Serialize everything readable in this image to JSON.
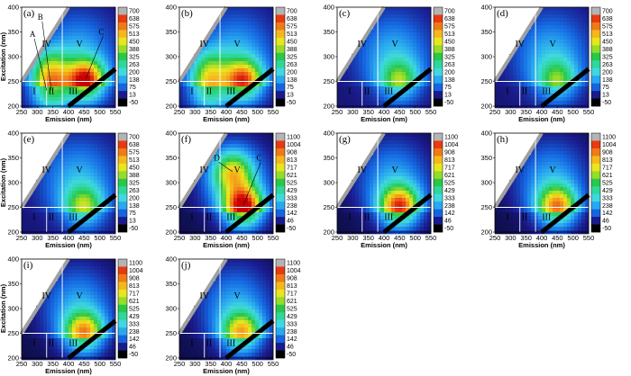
{
  "colors": {
    "colormap": [
      "#000000",
      "#1a1a8c",
      "#1565e0",
      "#29a8f0",
      "#3fd8e0",
      "#2fd79a",
      "#29c84a",
      "#96dc2a",
      "#e8e61e",
      "#f5b81c",
      "#f07a18",
      "#e83a12",
      "#c80000",
      "#b4b4b4"
    ],
    "divider": "#ffffff"
  },
  "chart_data": [
    {
      "panel": "(a)",
      "type": "heatmap",
      "xlabel": "Emission (nm)",
      "ylabel": "Excitation (nm)",
      "xlim": [
        250,
        550
      ],
      "ylim": [
        200,
        400
      ],
      "xticks": [
        250,
        300,
        350,
        400,
        450,
        500,
        550
      ],
      "yticks": [
        200,
        250,
        300,
        350,
        400
      ],
      "colorbar": [
        700,
        638,
        575,
        513,
        450,
        388,
        325,
        263,
        200,
        138,
        75,
        13,
        -50
      ],
      "regions": [
        "I",
        "II",
        "III",
        "IV",
        "V"
      ],
      "peak_labels": [
        "A",
        "B",
        "C"
      ],
      "peaks": [
        {
          "em": 345,
          "ex": 228,
          "v": 430
        },
        {
          "em": 455,
          "ex": 250,
          "v": 640
        },
        {
          "em": 340,
          "ex": 275,
          "v": 300
        }
      ]
    },
    {
      "panel": "(b)",
      "type": "heatmap",
      "xlabel": "Emission (nm)",
      "ylabel": "",
      "xlim": [
        250,
        550
      ],
      "ylim": [
        200,
        400
      ],
      "xticks": [
        250,
        300,
        350,
        400,
        450,
        500,
        550
      ],
      "yticks": [
        200,
        250,
        300,
        350,
        400
      ],
      "colorbar": [
        700,
        638,
        575,
        513,
        450,
        388,
        325,
        263,
        200,
        138,
        75,
        13,
        -50
      ],
      "regions": [
        "I",
        "II",
        "III",
        "IV",
        "V"
      ],
      "peak_labels": [],
      "peaks": [
        {
          "em": 345,
          "ex": 228,
          "v": 360
        },
        {
          "em": 455,
          "ex": 250,
          "v": 560
        },
        {
          "em": 345,
          "ex": 275,
          "v": 250
        }
      ]
    },
    {
      "panel": "(c)",
      "type": "heatmap",
      "xlabel": "Emission (nm)",
      "ylabel": "",
      "xlim": [
        250,
        550
      ],
      "ylim": [
        200,
        400
      ],
      "xticks": [
        250,
        300,
        350,
        400,
        450,
        500,
        550
      ],
      "yticks": [
        200,
        250,
        300,
        350,
        400
      ],
      "colorbar": [
        700,
        638,
        575,
        513,
        450,
        388,
        325,
        263,
        200,
        138,
        75,
        13,
        -50
      ],
      "regions": [
        "I",
        "II",
        "III",
        "IV",
        "V"
      ],
      "peak_labels": [],
      "peaks": [
        {
          "em": 450,
          "ex": 250,
          "v": 310
        }
      ]
    },
    {
      "panel": "(d)",
      "type": "heatmap",
      "xlabel": "Emission (nm)",
      "ylabel": "",
      "xlim": [
        250,
        550
      ],
      "ylim": [
        200,
        400
      ],
      "xticks": [
        250,
        300,
        350,
        400,
        450,
        500,
        550
      ],
      "yticks": [
        200,
        250,
        300,
        350,
        400
      ],
      "colorbar": [
        700,
        638,
        575,
        513,
        450,
        388,
        325,
        263,
        200,
        138,
        75,
        13,
        -50
      ],
      "regions": [
        "I",
        "II",
        "III",
        "IV",
        "V"
      ],
      "peak_labels": [],
      "peaks": [
        {
          "em": 450,
          "ex": 250,
          "v": 290
        }
      ]
    },
    {
      "panel": "(e)",
      "type": "heatmap",
      "xlabel": "Emission (nm)",
      "ylabel": "Excitation (nm)",
      "xlim": [
        250,
        550
      ],
      "ylim": [
        200,
        400
      ],
      "xticks": [
        250,
        300,
        350,
        400,
        450,
        500,
        550
      ],
      "yticks": [
        200,
        250,
        300,
        350,
        400
      ],
      "colorbar": [
        700,
        638,
        575,
        513,
        450,
        388,
        325,
        263,
        200,
        138,
        75,
        13,
        -50
      ],
      "regions": [
        "I",
        "II",
        "III",
        "IV",
        "V"
      ],
      "peak_labels": [],
      "peaks": [
        {
          "em": 450,
          "ex": 250,
          "v": 330
        }
      ]
    },
    {
      "panel": "(f)",
      "type": "heatmap",
      "xlabel": "Emission (nm)",
      "ylabel": "",
      "xlim": [
        250,
        550
      ],
      "ylim": [
        200,
        400
      ],
      "xticks": [
        250,
        300,
        350,
        400,
        450,
        500,
        550
      ],
      "yticks": [
        200,
        250,
        300,
        350,
        400
      ],
      "colorbar": [
        1100,
        1004,
        908,
        813,
        717,
        621,
        525,
        429,
        333,
        238,
        142,
        46,
        -50
      ],
      "regions": [
        "I",
        "II",
        "III",
        "IV",
        "V"
      ],
      "peak_labels": [
        "D",
        "C"
      ],
      "peaks": [
        {
          "em": 455,
          "ex": 250,
          "v": 1050
        },
        {
          "em": 420,
          "ex": 320,
          "v": 560
        }
      ]
    },
    {
      "panel": "(g)",
      "type": "heatmap",
      "xlabel": "Emission (nm)",
      "ylabel": "",
      "xlim": [
        250,
        550
      ],
      "ylim": [
        200,
        400
      ],
      "xticks": [
        250,
        300,
        350,
        400,
        450,
        500,
        550
      ],
      "yticks": [
        200,
        250,
        300,
        350,
        400
      ],
      "colorbar": [
        1100,
        1004,
        908,
        813,
        717,
        621,
        525,
        429,
        333,
        238,
        142,
        46,
        -50
      ],
      "regions": [
        "I",
        "II",
        "III",
        "IV",
        "V"
      ],
      "peak_labels": [],
      "peaks": [
        {
          "em": 450,
          "ex": 250,
          "v": 900
        }
      ]
    },
    {
      "panel": "(h)",
      "type": "heatmap",
      "xlabel": "Emission (nm)",
      "ylabel": "",
      "xlim": [
        250,
        550
      ],
      "ylim": [
        200,
        400
      ],
      "xticks": [
        250,
        300,
        350,
        400,
        450,
        500,
        550
      ],
      "yticks": [
        200,
        250,
        300,
        350,
        400
      ],
      "colorbar": [
        1100,
        1004,
        908,
        813,
        717,
        621,
        525,
        429,
        333,
        238,
        142,
        46,
        -50
      ],
      "regions": [
        "I",
        "II",
        "III",
        "IV",
        "V"
      ],
      "peak_labels": [],
      "peaks": [
        {
          "em": 450,
          "ex": 250,
          "v": 780
        }
      ]
    },
    {
      "panel": "(i)",
      "type": "heatmap",
      "xlabel": "Emission (nm)",
      "ylabel": "Excitation (nm)",
      "xlim": [
        250,
        550
      ],
      "ylim": [
        200,
        400
      ],
      "xticks": [
        250,
        300,
        350,
        400,
        450,
        500,
        550
      ],
      "yticks": [
        200,
        250,
        300,
        350,
        400
      ],
      "colorbar": [
        1100,
        1004,
        908,
        813,
        717,
        621,
        525,
        429,
        333,
        238,
        142,
        46,
        -50
      ],
      "regions": [
        "I",
        "II",
        "III",
        "IV",
        "V"
      ],
      "peak_labels": [],
      "peaks": [
        {
          "em": 450,
          "ex": 250,
          "v": 760
        }
      ]
    },
    {
      "panel": "(j)",
      "type": "heatmap",
      "xlabel": "Emission (nm)",
      "ylabel": "",
      "xlim": [
        250,
        550
      ],
      "ylim": [
        200,
        400
      ],
      "xticks": [
        250,
        300,
        350,
        400,
        450,
        500,
        550
      ],
      "yticks": [
        200,
        250,
        300,
        350,
        400
      ],
      "colorbar": [
        1100,
        1004,
        908,
        813,
        717,
        621,
        525,
        429,
        333,
        238,
        142,
        46,
        -50
      ],
      "regions": [
        "I",
        "II",
        "III",
        "IV",
        "V"
      ],
      "peak_labels": [],
      "peaks": [
        {
          "em": 450,
          "ex": 250,
          "v": 700
        }
      ]
    }
  ]
}
